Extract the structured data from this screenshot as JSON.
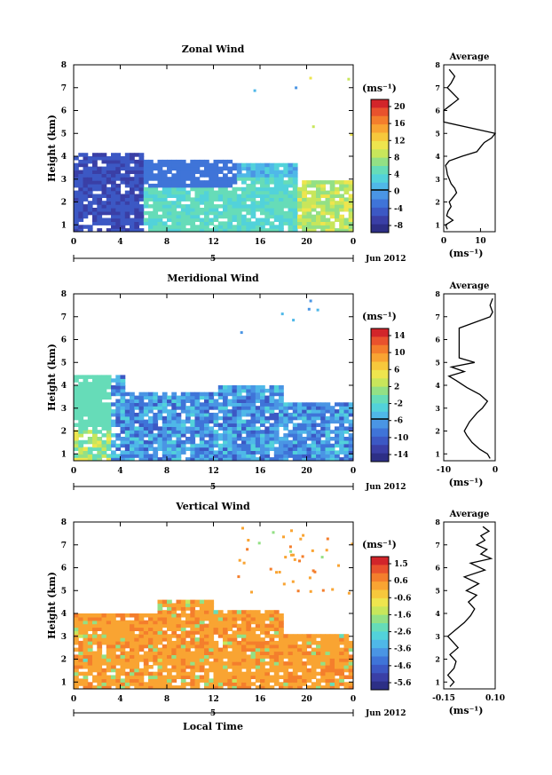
{
  "figure": {
    "bottom_xlabel": "Local Time",
    "date_label": "Jun 2012",
    "day_label": "5",
    "avg_title": "Average",
    "unit_label": "(ms⁻¹)"
  },
  "chart_data": [
    {
      "type": "heatmap",
      "title": "Zonal Wind",
      "xlabel": "",
      "ylabel": "Height (km)",
      "xlim": [
        0,
        24
      ],
      "ylim": [
        0.7,
        8
      ],
      "xticks": [
        "0",
        "4",
        "8",
        "12",
        "16",
        "20",
        "0"
      ],
      "yticks": [
        "1",
        "2",
        "3",
        "4",
        "5",
        "6",
        "7",
        "8"
      ],
      "colorbar": {
        "label": "(ms⁻¹)",
        "ticks": [
          "20",
          "16",
          "12",
          "8",
          "4",
          "0",
          "-4",
          "-8"
        ],
        "range": [
          -10,
          22
        ]
      },
      "average_profile": {
        "title": "Average",
        "xlabel": "(ms⁻¹)",
        "xticks": [
          "0",
          "10"
        ],
        "xlim": [
          0,
          14
        ],
        "height": [
          0.8,
          1.0,
          1.2,
          1.4,
          1.6,
          1.8,
          2.0,
          2.2,
          2.4,
          2.6,
          2.8,
          3.0,
          3.2,
          3.4,
          3.6,
          3.8,
          4.0,
          4.2,
          4.4,
          4.6,
          4.8,
          5.0,
          5.5,
          6.0,
          6.5,
          7.0,
          7.2,
          7.5,
          7.8
        ],
        "value": [
          1.0,
          0.5,
          2.5,
          0.8,
          1.2,
          2.0,
          1.5,
          2.5,
          3.5,
          3.0,
          2.0,
          1.5,
          1.0,
          0.8,
          0.5,
          1.5,
          5.0,
          9.0,
          10.0,
          11.0,
          13.0,
          14.0,
          0,
          0,
          4.0,
          1.0,
          2.0,
          3.0,
          1.5
        ]
      }
    },
    {
      "type": "heatmap",
      "title": "Meridional Wind",
      "xlabel": "",
      "ylabel": "Height (km)",
      "xlim": [
        0,
        24
      ],
      "ylim": [
        0.7,
        8
      ],
      "xticks": [
        "0",
        "4",
        "8",
        "12",
        "16",
        "20",
        "0"
      ],
      "yticks": [
        "1",
        "2",
        "3",
        "4",
        "5",
        "6",
        "7",
        "8"
      ],
      "colorbar": {
        "label": "(ms⁻¹)",
        "ticks": [
          "14",
          "10",
          "6",
          "2",
          "-2",
          "-6",
          "-10",
          "-14"
        ],
        "range": [
          -16,
          16
        ]
      },
      "average_profile": {
        "title": "Average",
        "xlabel": "(ms⁻¹)",
        "xticks": [
          "-10",
          "0"
        ],
        "xlim": [
          -10,
          0
        ],
        "height": [
          0.8,
          1.0,
          1.2,
          1.5,
          1.8,
          2.0,
          2.4,
          2.8,
          3.0,
          3.3,
          3.6,
          3.9,
          4.2,
          4.4,
          4.6,
          4.8,
          5.0,
          5.2,
          6.5,
          7.0,
          7.2,
          7.5,
          7.8
        ],
        "value": [
          -1.0,
          -1.5,
          -3.0,
          -4.5,
          -5.5,
          -6.0,
          -5.0,
          -3.5,
          -2.5,
          -1.5,
          -3.0,
          -5.5,
          -7.5,
          -9.0,
          -6.0,
          -8.5,
          -4.0,
          -7.0,
          -7.0,
          -1.0,
          -0.5,
          -1.0,
          -0.5
        ]
      }
    },
    {
      "type": "heatmap",
      "title": "Vertical Wind",
      "xlabel": "Local Time",
      "ylabel": "Height (km)",
      "xlim": [
        0,
        24
      ],
      "ylim": [
        0.7,
        8
      ],
      "xticks": [
        "0",
        "4",
        "8",
        "12",
        "16",
        "20",
        "0"
      ],
      "yticks": [
        "1",
        "2",
        "3",
        "4",
        "5",
        "6",
        "7",
        "8"
      ],
      "colorbar": {
        "label": "(ms⁻¹)",
        "ticks": [
          "1.5",
          "0.6",
          "-0.6",
          "-1.6",
          "-2.6",
          "-3.6",
          "-4.6",
          "-5.6"
        ],
        "range": [
          -6.2,
          2.1
        ]
      },
      "average_profile": {
        "title": "Average",
        "xlabel": "(ms⁻¹)",
        "xticks": [
          "-0.15",
          "0.10"
        ],
        "xlim": [
          -0.15,
          0.1
        ],
        "height": [
          0.8,
          1.0,
          1.3,
          1.6,
          1.9,
          2.2,
          2.5,
          2.8,
          3.0,
          3.3,
          3.6,
          3.9,
          4.2,
          4.5,
          4.8,
          5.0,
          5.3,
          5.6,
          5.9,
          6.2,
          6.4,
          6.6,
          6.8,
          7.0,
          7.2,
          7.4,
          7.6,
          7.8
        ],
        "value": [
          -0.12,
          -0.1,
          -0.13,
          -0.1,
          -0.09,
          -0.12,
          -0.08,
          -0.11,
          -0.13,
          -0.09,
          -0.05,
          -0.02,
          0.0,
          -0.03,
          0.01,
          -0.04,
          0.02,
          -0.05,
          0.05,
          -0.02,
          0.08,
          0.03,
          0.06,
          0.01,
          0.05,
          0.03,
          0.07,
          0.04
        ]
      }
    }
  ]
}
